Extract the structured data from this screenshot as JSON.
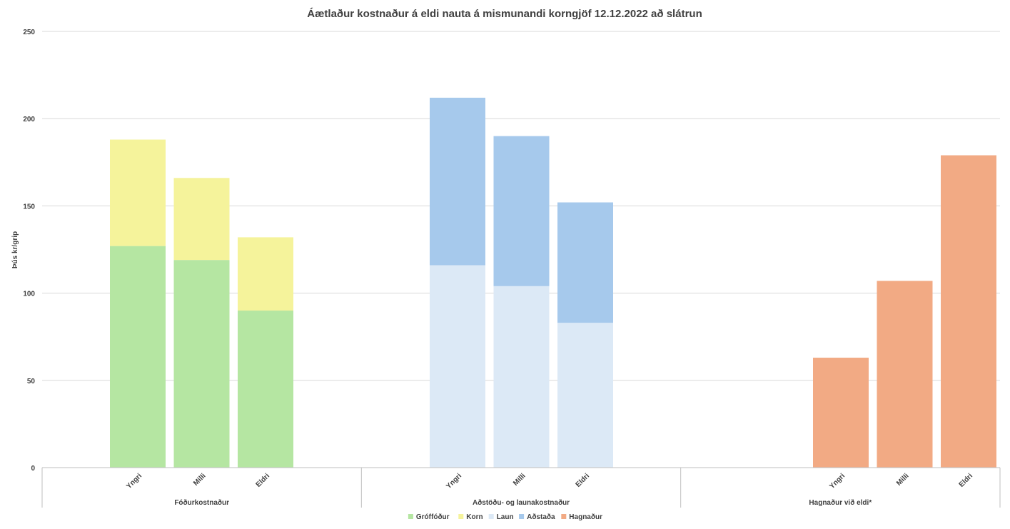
{
  "chart_data": {
    "type": "bar",
    "stacked": true,
    "title": "Áætlaður kostnaður á eldi nauta á mismunandi korngjöf 12.12.2022 að slátrun",
    "ylabel": "Þús kr/grip",
    "xlabel": "",
    "ylim": [
      0,
      250
    ],
    "yticks": [
      0,
      50,
      100,
      150,
      200,
      250
    ],
    "grid": true,
    "legend_position": "bottom",
    "groups": [
      {
        "name": "Fóðurkostnaður",
        "categories": [
          "Yngri",
          "Milli",
          "Eldri"
        ],
        "stacks": [
          {
            "series": "Gróffóður",
            "values": [
              127,
              119,
              90
            ]
          },
          {
            "series": "Korn",
            "values": [
              61,
              47,
              42
            ]
          }
        ]
      },
      {
        "name": "Aðstöðu- og launakostnaður",
        "categories": [
          "Yngri",
          "Milli",
          "Eldri"
        ],
        "stacks": [
          {
            "series": "Laun",
            "values": [
              116,
              104,
              83
            ]
          },
          {
            "series": "Aðstaða",
            "values": [
              96,
              86,
              69
            ]
          }
        ]
      },
      {
        "name": "Hagnaður við eldi*",
        "categories": [
          "Yngri",
          "Milli",
          "Eldri"
        ],
        "stacks": [
          {
            "series": "Hagnaður",
            "values": [
              63,
              107,
              179
            ]
          }
        ]
      }
    ],
    "series": [
      {
        "name": "Gróffóður",
        "color": "#b5e6a2"
      },
      {
        "name": "Korn",
        "color": "#f5f39b"
      },
      {
        "name": "Laun",
        "color": "#dce9f6"
      },
      {
        "name": "Aðstaða",
        "color": "#a6c9ec"
      },
      {
        "name": "Hagnaður",
        "color": "#f2aa84"
      }
    ]
  }
}
